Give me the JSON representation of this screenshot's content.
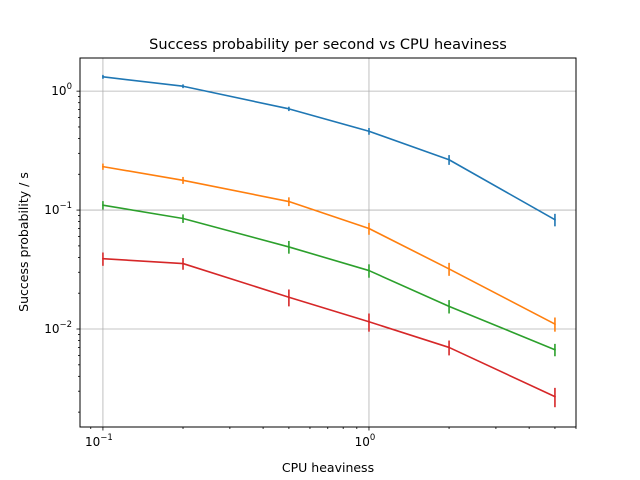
{
  "chart_data": {
    "type": "line",
    "title": "Success probability per second vs CPU heaviness",
    "xlabel": "CPU heaviness",
    "ylabel": "Success probability / s",
    "xscale": "log",
    "yscale": "log",
    "xlim": [
      0.082,
      6.0
    ],
    "ylim": [
      0.0015,
      1.9
    ],
    "grid": true,
    "x": [
      0.1,
      0.2,
      0.5,
      1.0,
      2.0,
      5.0
    ],
    "xticks": [
      {
        "value": 0.1,
        "base": "10",
        "exp": "−1"
      },
      {
        "value": 1,
        "base": "10",
        "exp": "0"
      }
    ],
    "yticks": [
      {
        "value": 0.01,
        "base": "10",
        "exp": "−2"
      },
      {
        "value": 0.1,
        "base": "10",
        "exp": "−1"
      },
      {
        "value": 1,
        "base": "10",
        "exp": "0"
      }
    ],
    "series": [
      {
        "color": "#1f77b4",
        "values": [
          1.32,
          1.1,
          0.71,
          0.46,
          0.265,
          0.083
        ],
        "err": [
          0.05,
          0.04,
          0.03,
          0.03,
          0.025,
          0.01
        ]
      },
      {
        "color": "#ff7f0e",
        "values": [
          0.232,
          0.178,
          0.118,
          0.07,
          0.032,
          0.011
        ],
        "err": [
          0.014,
          0.012,
          0.01,
          0.008,
          0.004,
          0.0015
        ]
      },
      {
        "color": "#2ca02c",
        "values": [
          0.11,
          0.085,
          0.049,
          0.031,
          0.0155,
          0.0067
        ],
        "err": [
          0.009,
          0.007,
          0.006,
          0.004,
          0.002,
          0.0008
        ]
      },
      {
        "color": "#d62728",
        "values": [
          0.039,
          0.0355,
          0.0185,
          0.0115,
          0.007,
          0.0027
        ],
        "err": [
          0.005,
          0.004,
          0.003,
          0.002,
          0.001,
          0.0005
        ]
      }
    ]
  }
}
